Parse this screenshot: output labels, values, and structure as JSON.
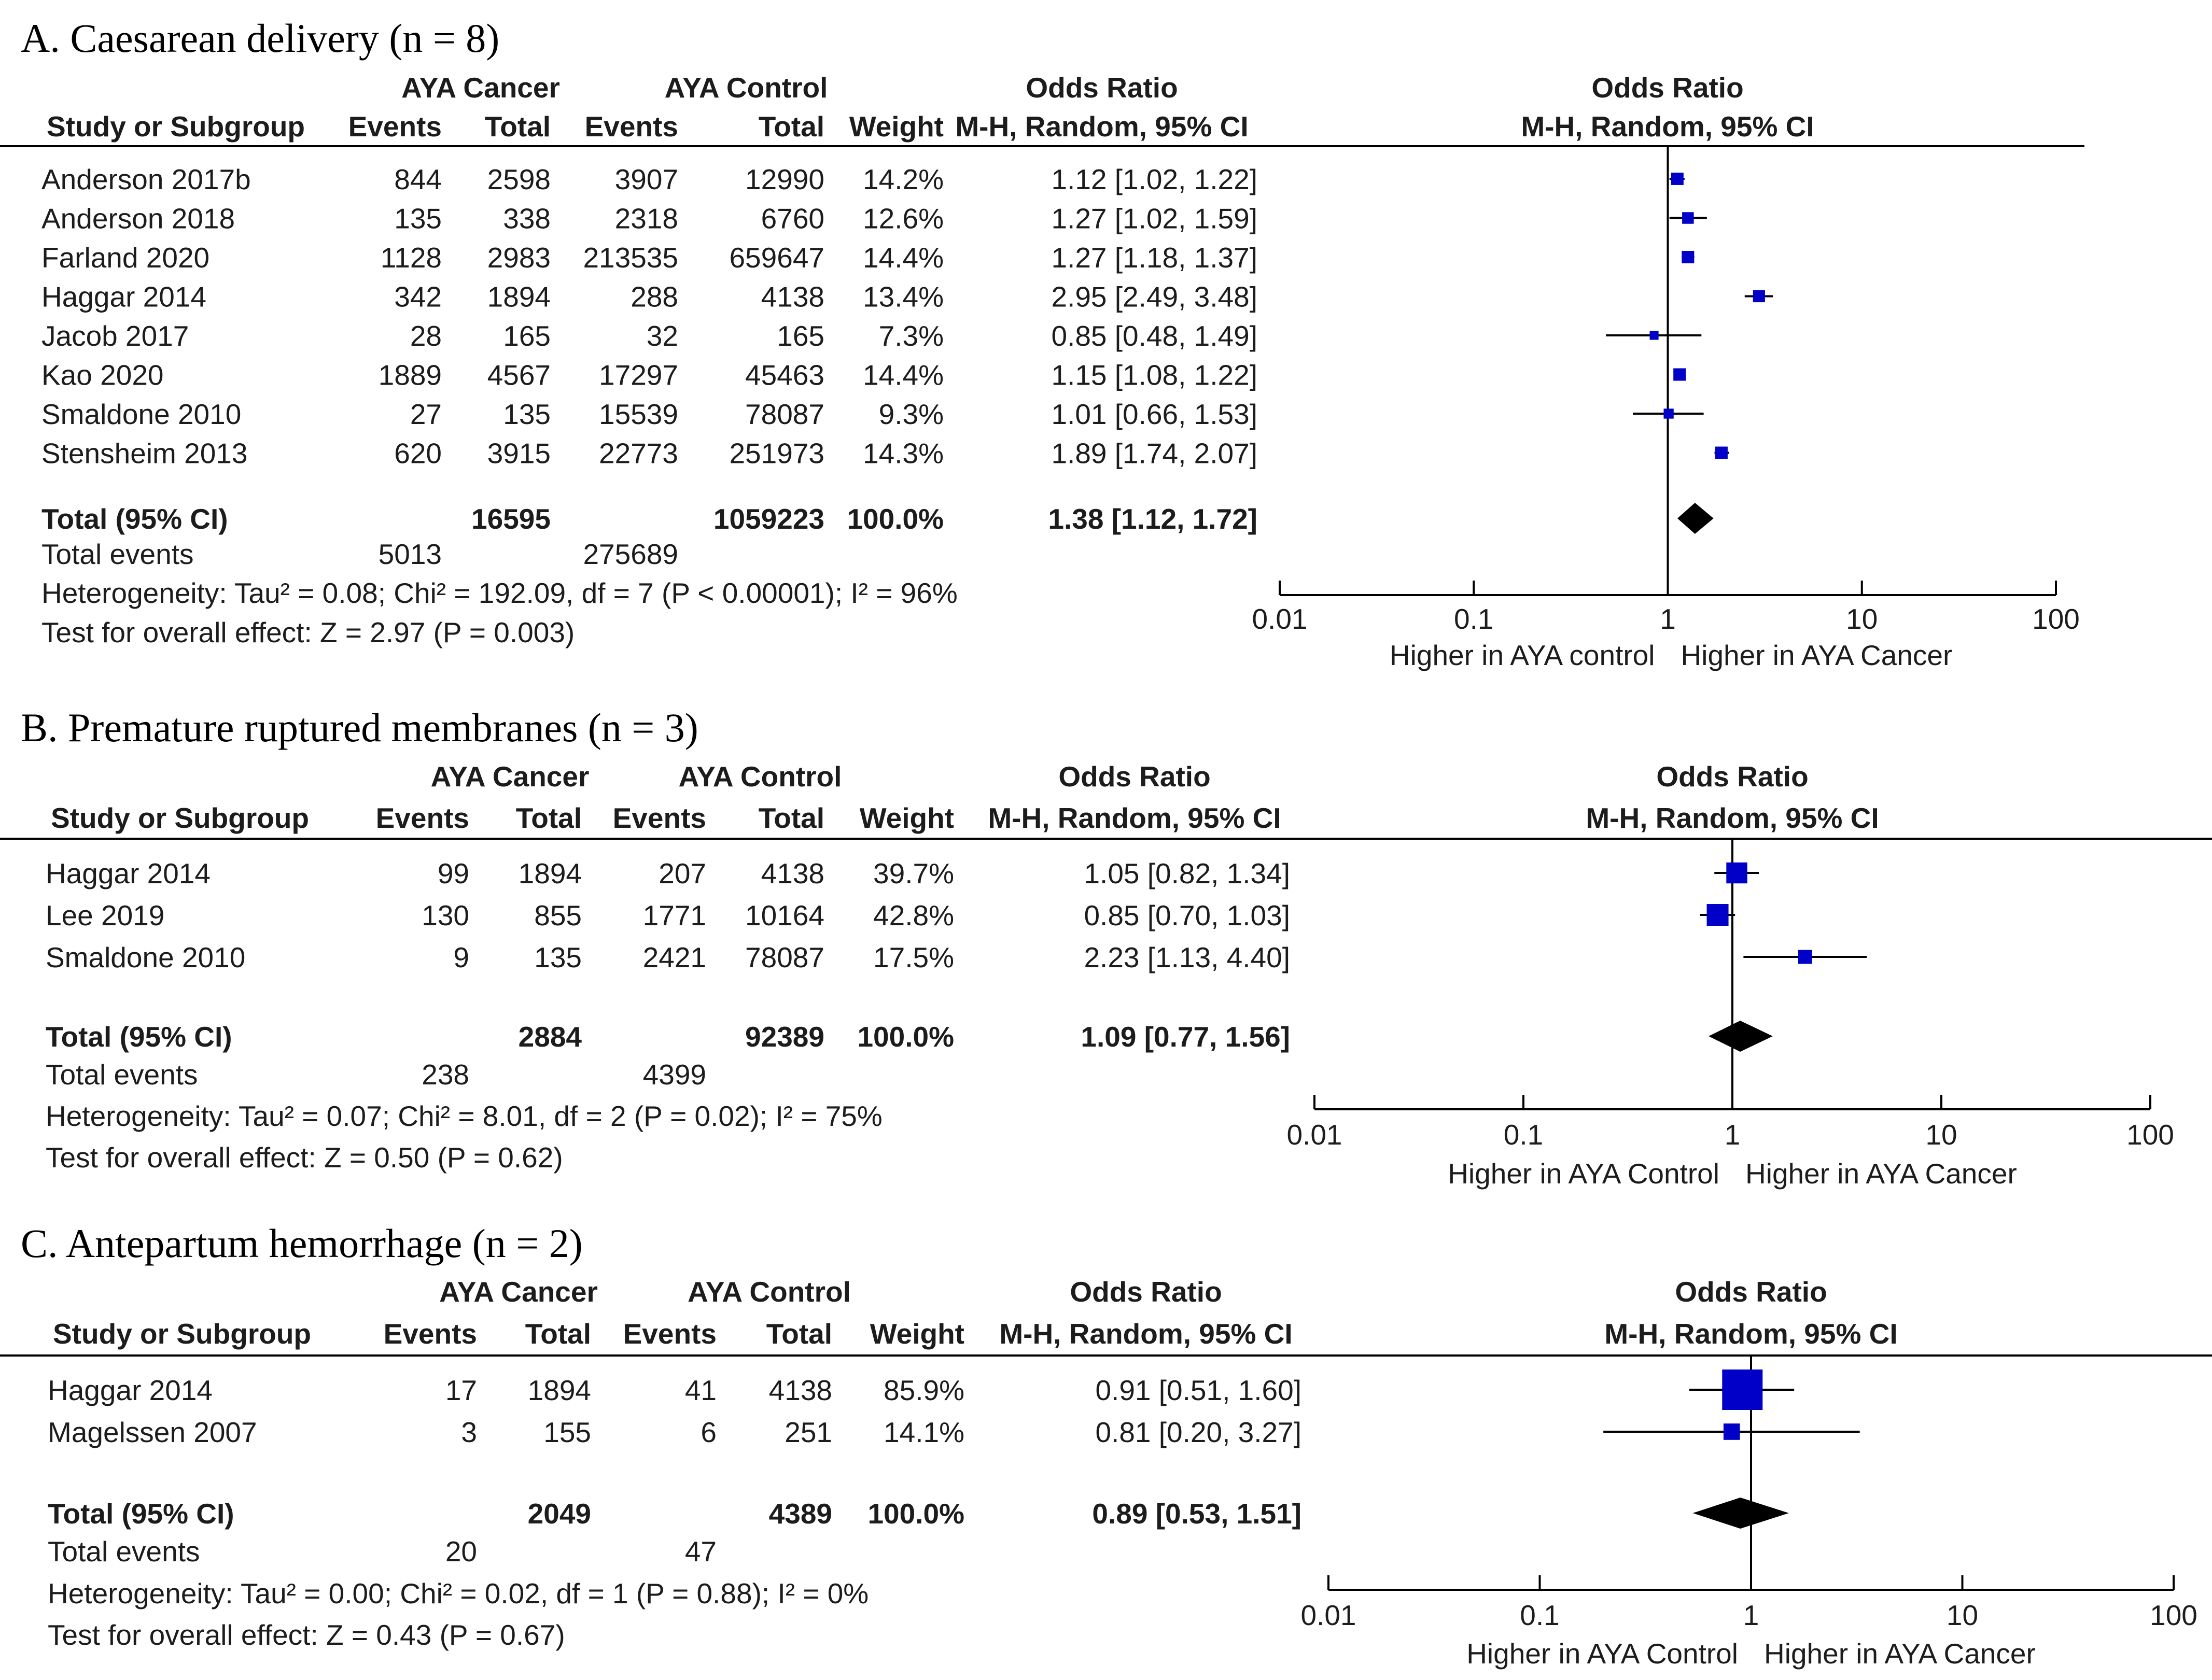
{
  "chart_data": [
    {
      "type": "forest",
      "title": "A. Caesarean delivery (n = 8)",
      "headers": {
        "group1": "AYA Cancer",
        "group2": "AYA Control",
        "or_col": "Odds Ratio",
        "or_method": "M-H, Random, 95% CI",
        "plot_title": "Odds Ratio",
        "plot_method": "M-H, Random, 95% CI",
        "study": "Study or Subgroup",
        "events1": "Events",
        "total1": "Total",
        "events2": "Events",
        "total2": "Total",
        "weight": "Weight"
      },
      "studies": [
        {
          "name": "Anderson 2017b",
          "e1": "844",
          "t1": "2598",
          "e2": "3907",
          "t2": "12990",
          "weight": "14.2%",
          "ci_text": "1.12 [1.02, 1.22]",
          "or": 1.12,
          "lo": 1.02,
          "hi": 1.22
        },
        {
          "name": "Anderson 2018",
          "e1": "135",
          "t1": "338",
          "e2": "2318",
          "t2": "6760",
          "weight": "12.6%",
          "ci_text": "1.27 [1.02, 1.59]",
          "or": 1.27,
          "lo": 1.02,
          "hi": 1.59
        },
        {
          "name": "Farland 2020",
          "e1": "1128",
          "t1": "2983",
          "e2": "213535",
          "t2": "659647",
          "weight": "14.4%",
          "ci_text": "1.27 [1.18, 1.37]",
          "or": 1.27,
          "lo": 1.18,
          "hi": 1.37
        },
        {
          "name": "Haggar 2014",
          "e1": "342",
          "t1": "1894",
          "e2": "288",
          "t2": "4138",
          "weight": "13.4%",
          "ci_text": "2.95 [2.49, 3.48]",
          "or": 2.95,
          "lo": 2.49,
          "hi": 3.48
        },
        {
          "name": "Jacob 2017",
          "e1": "28",
          "t1": "165",
          "e2": "32",
          "t2": "165",
          "weight": "7.3%",
          "ci_text": "0.85 [0.48, 1.49]",
          "or": 0.85,
          "lo": 0.48,
          "hi": 1.49
        },
        {
          "name": "Kao 2020",
          "e1": "1889",
          "t1": "4567",
          "e2": "17297",
          "t2": "45463",
          "weight": "14.4%",
          "ci_text": "1.15 [1.08, 1.22]",
          "or": 1.15,
          "lo": 1.08,
          "hi": 1.22
        },
        {
          "name": "Smaldone 2010",
          "e1": "27",
          "t1": "135",
          "e2": "15539",
          "t2": "78087",
          "weight": "9.3%",
          "ci_text": "1.01 [0.66, 1.53]",
          "or": 1.01,
          "lo": 0.66,
          "hi": 1.53
        },
        {
          "name": "Stensheim 2013",
          "e1": "620",
          "t1": "3915",
          "e2": "22773",
          "t2": "251973",
          "weight": "14.3%",
          "ci_text": "1.89 [1.74, 2.07]",
          "or": 1.89,
          "lo": 1.74,
          "hi": 2.07
        }
      ],
      "total": {
        "label": "Total (95% CI)",
        "t1": "16595",
        "t2": "1059223",
        "weight": "100.0%",
        "ci_text": "1.38 [1.12, 1.72]",
        "or": 1.38,
        "lo": 1.12,
        "hi": 1.72
      },
      "events": {
        "label": "Total events",
        "e1": "5013",
        "e2": "275689"
      },
      "heterogeneity": "Heterogeneity: Tau² = 0.08; Chi² = 192.09, df = 7 (P < 0.00001); I² = 96%",
      "overall": "Test for overall effect: Z = 2.97 (P = 0.003)",
      "axis": {
        "scale": "log",
        "range": [
          0.01,
          100
        ],
        "ticks": [
          "0.01",
          "0.1",
          "1",
          "10",
          "100"
        ],
        "left_label": "Higher in AYA control",
        "right_label": "Higher in AYA Cancer"
      }
    },
    {
      "type": "forest",
      "title": "B. Premature ruptured membranes (n = 3)",
      "headers": {
        "group1": "AYA Cancer",
        "group2": "AYA Control",
        "or_col": "Odds Ratio",
        "or_method": "M-H, Random, 95% CI",
        "plot_title": "Odds Ratio",
        "plot_method": "M-H, Random, 95% CI",
        "study": "Study or Subgroup",
        "events1": "Events",
        "total1": "Total",
        "events2": "Events",
        "total2": "Total",
        "weight": "Weight"
      },
      "studies": [
        {
          "name": "Haggar 2014",
          "e1": "99",
          "t1": "1894",
          "e2": "207",
          "t2": "4138",
          "weight": "39.7%",
          "ci_text": "1.05 [0.82, 1.34]",
          "or": 1.05,
          "lo": 0.82,
          "hi": 1.34
        },
        {
          "name": "Lee 2019",
          "e1": "130",
          "t1": "855",
          "e2": "1771",
          "t2": "10164",
          "weight": "42.8%",
          "ci_text": "0.85 [0.70, 1.03]",
          "or": 0.85,
          "lo": 0.7,
          "hi": 1.03
        },
        {
          "name": "Smaldone 2010",
          "e1": "9",
          "t1": "135",
          "e2": "2421",
          "t2": "78087",
          "weight": "17.5%",
          "ci_text": "2.23 [1.13, 4.40]",
          "or": 2.23,
          "lo": 1.13,
          "hi": 4.4
        }
      ],
      "total": {
        "label": "Total (95% CI)",
        "t1": "2884",
        "t2": "92389",
        "weight": "100.0%",
        "ci_text": "1.09 [0.77, 1.56]",
        "or": 1.09,
        "lo": 0.77,
        "hi": 1.56
      },
      "events": {
        "label": "Total events",
        "e1": "238",
        "e2": "4399"
      },
      "heterogeneity": "Heterogeneity: Tau² = 0.07; Chi² = 8.01, df = 2 (P = 0.02); I² = 75%",
      "overall": "Test for overall effect: Z = 0.50 (P = 0.62)",
      "axis": {
        "scale": "log",
        "range": [
          0.01,
          100
        ],
        "ticks": [
          "0.01",
          "0.1",
          "1",
          "10",
          "100"
        ],
        "left_label": "Higher in AYA Control",
        "right_label": "Higher in AYA Cancer"
      }
    },
    {
      "type": "forest",
      "title": "C. Antepartum hemorrhage (n = 2)",
      "headers": {
        "group1": "AYA Cancer",
        "group2": "AYA Control",
        "or_col": "Odds Ratio",
        "or_method": "M-H, Random, 95% CI",
        "plot_title": "Odds Ratio",
        "plot_method": "M-H, Random, 95% CI",
        "study": "Study or Subgroup",
        "events1": "Events",
        "total1": "Total",
        "events2": "Events",
        "total2": "Total",
        "weight": "Weight"
      },
      "studies": [
        {
          "name": "Haggar 2014",
          "e1": "17",
          "t1": "1894",
          "e2": "41",
          "t2": "4138",
          "weight": "85.9%",
          "ci_text": "0.91 [0.51, 1.60]",
          "or": 0.91,
          "lo": 0.51,
          "hi": 1.6
        },
        {
          "name": "Magelssen 2007",
          "e1": "3",
          "t1": "155",
          "e2": "6",
          "t2": "251",
          "weight": "14.1%",
          "ci_text": "0.81 [0.20, 3.27]",
          "or": 0.81,
          "lo": 0.2,
          "hi": 3.27
        }
      ],
      "total": {
        "label": "Total (95% CI)",
        "t1": "2049",
        "t2": "4389",
        "weight": "100.0%",
        "ci_text": "0.89 [0.53, 1.51]",
        "or": 0.89,
        "lo": 0.53,
        "hi": 1.51
      },
      "events": {
        "label": "Total events",
        "e1": "20",
        "e2": "47"
      },
      "heterogeneity": "Heterogeneity: Tau² = 0.00; Chi² = 0.02, df = 1 (P = 0.88); I² = 0%",
      "overall": "Test for overall effect: Z = 0.43 (P = 0.67)",
      "axis": {
        "scale": "log",
        "range": [
          0.01,
          100
        ],
        "ticks": [
          "0.01",
          "0.1",
          "1",
          "10",
          "100"
        ],
        "left_label": "Higher in AYA Control",
        "right_label": "Higher in AYA Cancer"
      }
    }
  ],
  "colors": {
    "marker": "#0000c8",
    "line": "#000000",
    "text": "#1c1c1c"
  }
}
